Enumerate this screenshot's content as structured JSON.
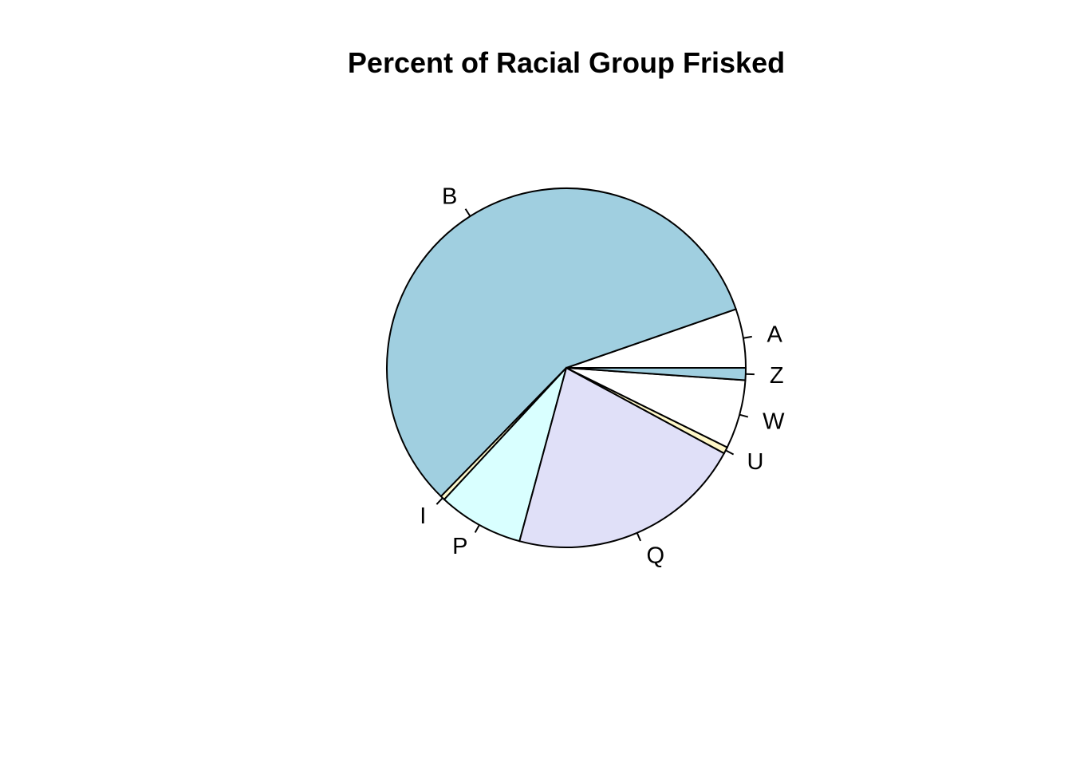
{
  "chart_data": {
    "type": "pie",
    "title": "Percent of Racial Group Frisked",
    "start_angle_deg": 0,
    "direction": "counterclockwise",
    "slices": [
      {
        "label": "A",
        "value": 5.3,
        "color": "#ffffff"
      },
      {
        "label": "B",
        "value": 57.4,
        "color": "#a0cfe0"
      },
      {
        "label": "I",
        "value": 0.4,
        "color": "#fffacd"
      },
      {
        "label": "P",
        "value": 7.7,
        "color": "#d9ffff"
      },
      {
        "label": "Q",
        "value": 21.3,
        "color": "#e0e0f8"
      },
      {
        "label": "U",
        "value": 0.6,
        "color": "#fff8c8"
      },
      {
        "label": "W",
        "value": 6.2,
        "color": "#ffffff"
      },
      {
        "label": "Z",
        "value": 1.1,
        "color": "#a0cfe0"
      }
    ]
  }
}
